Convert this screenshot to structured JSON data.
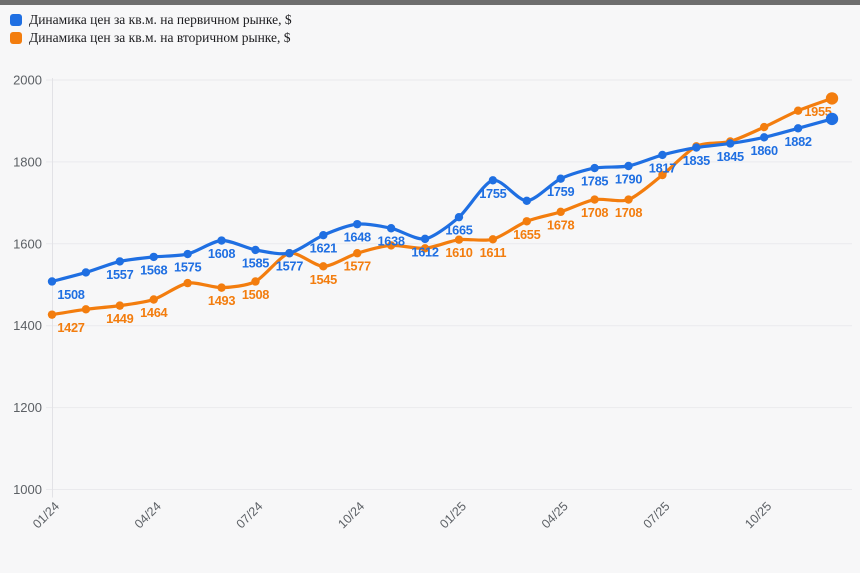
{
  "page": {
    "background": "#f7f7f8",
    "top_bar_color": "#6e6e6e"
  },
  "legend": {
    "items": [
      {
        "label": "Динамика цен за кв.м. на первичном рынке, $",
        "color": "#1f6fe2"
      },
      {
        "label": "Динамика цен за кв.м. на вторичном рынке, $",
        "color": "#f37d0e"
      }
    ]
  },
  "chart_data": {
    "type": "line",
    "title": "",
    "xlabel": "",
    "ylabel": "",
    "ylim": [
      1000,
      2000
    ],
    "yticks": [
      1000,
      1200,
      1400,
      1600,
      1800,
      2000
    ],
    "grid": "horizontal-faint",
    "legend_position": "top-left",
    "categories": [
      "01/24",
      "02/24",
      "03/24",
      "04/24",
      "05/24",
      "06/24",
      "07/24",
      "08/24",
      "09/24",
      "10/24",
      "11/24",
      "12/24",
      "01/25",
      "02/25",
      "03/25",
      "04/25",
      "05/25",
      "06/25",
      "07/25",
      "08/25",
      "09/25",
      "10/25",
      "11/25",
      "12/25"
    ],
    "x_tick_labels": [
      "01/24",
      "04/24",
      "07/24",
      "10/24",
      "01/25",
      "04/25",
      "07/25",
      "10/25"
    ],
    "x_tick_indices": [
      0,
      3,
      6,
      9,
      12,
      15,
      18,
      21
    ],
    "series": [
      {
        "key": "secondary",
        "name": "Динамика цен за кв.м. на вторичном рынке, $",
        "color": "#f37d0e",
        "values": [
          1427,
          1440,
          1449,
          1464,
          1504,
          1493,
          1508,
          1577,
          1545,
          1577,
          1596,
          1589,
          1610,
          1611,
          1655,
          1678,
          1708,
          1708,
          1768,
          1838,
          1850,
          1885,
          1925,
          1955
        ],
        "label_shown": [
          true,
          false,
          true,
          true,
          false,
          true,
          true,
          false,
          true,
          true,
          false,
          false,
          true,
          true,
          true,
          true,
          true,
          true,
          false,
          false,
          false,
          false,
          false,
          true
        ]
      },
      {
        "key": "primary",
        "name": "Динамика цен за кв.м. на первичном рынке, $",
        "color": "#1f6fe2",
        "values": [
          1508,
          1530,
          1557,
          1568,
          1575,
          1608,
          1585,
          1577,
          1621,
          1648,
          1638,
          1612,
          1665,
          1755,
          1705,
          1759,
          1785,
          1790,
          1817,
          1835,
          1845,
          1860,
          1882,
          1905
        ],
        "label_shown": [
          true,
          false,
          true,
          true,
          true,
          true,
          true,
          true,
          true,
          true,
          true,
          true,
          true,
          true,
          false,
          true,
          true,
          true,
          true,
          true,
          true,
          true,
          true,
          false
        ]
      }
    ]
  }
}
